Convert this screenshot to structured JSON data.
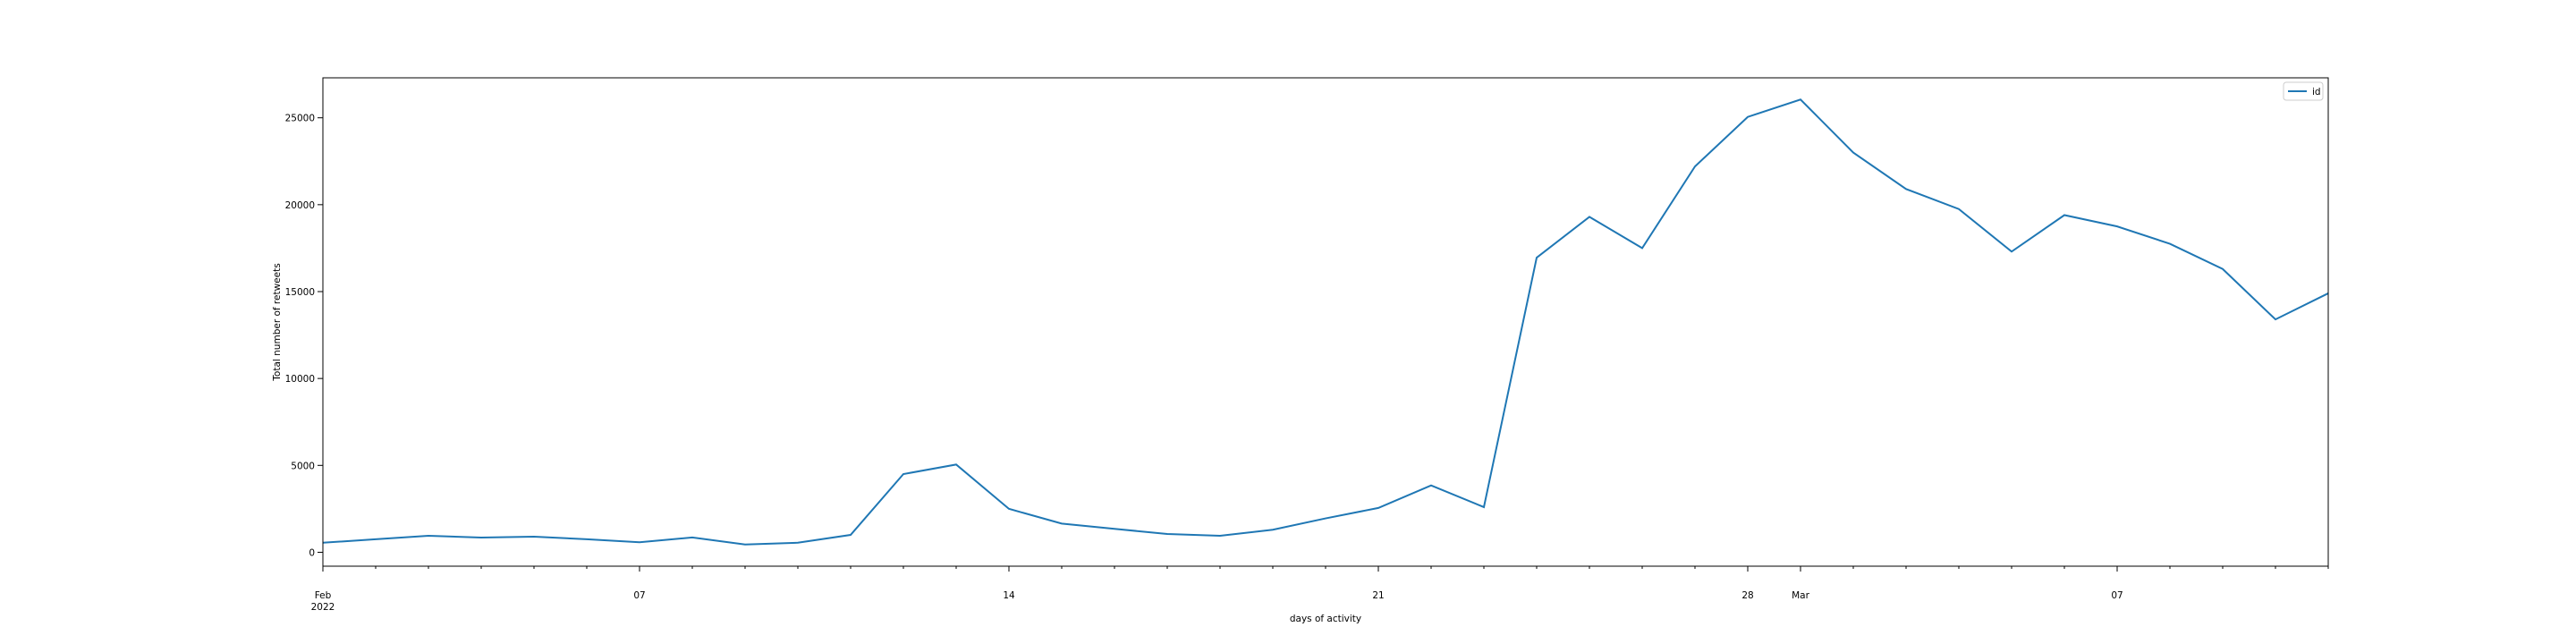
{
  "chart_data": {
    "type": "line",
    "title": "",
    "xlabel": "days of activity",
    "ylabel": "Total number of retweets",
    "x_start": "2022-02-01",
    "x": [
      "2022-02-01",
      "2022-02-02",
      "2022-02-03",
      "2022-02-04",
      "2022-02-05",
      "2022-02-06",
      "2022-02-07",
      "2022-02-08",
      "2022-02-09",
      "2022-02-10",
      "2022-02-11",
      "2022-02-12",
      "2022-02-13",
      "2022-02-14",
      "2022-02-15",
      "2022-02-16",
      "2022-02-17",
      "2022-02-18",
      "2022-02-19",
      "2022-02-20",
      "2022-02-21",
      "2022-02-22",
      "2022-02-23",
      "2022-02-24",
      "2022-02-25",
      "2022-02-26",
      "2022-02-27",
      "2022-02-28",
      "2022-03-01",
      "2022-03-02",
      "2022-03-03",
      "2022-03-04",
      "2022-03-05",
      "2022-03-06",
      "2022-03-07",
      "2022-03-08",
      "2022-03-09",
      "2022-03-10",
      "2022-03-11"
    ],
    "series": [
      {
        "name": "id",
        "color": "#1f77b4",
        "values": [
          550,
          750,
          950,
          850,
          900,
          750,
          580,
          850,
          450,
          550,
          1000,
          4500,
          5050,
          2500,
          1650,
          1350,
          1050,
          950,
          1300,
          1950,
          2550,
          3850,
          2600,
          16950,
          19300,
          17500,
          22200,
          25050,
          26050,
          23000,
          20900,
          19750,
          17300,
          19400,
          18750,
          17750,
          16300,
          13400,
          14900
        ]
      }
    ],
    "ylim": [
      -800,
      27300
    ],
    "y_ticks": [
      0,
      5000,
      10000,
      15000,
      20000,
      25000
    ],
    "y_tick_labels": [
      "0",
      "5000",
      "10000",
      "15000",
      "20000",
      "25000"
    ],
    "x_major_ticks": [
      {
        "x": "2022-02-01",
        "label": "Feb",
        "sublabel": "2022"
      },
      {
        "x": "2022-02-07",
        "label": "07",
        "sublabel": ""
      },
      {
        "x": "2022-02-14",
        "label": "14",
        "sublabel": ""
      },
      {
        "x": "2022-02-21",
        "label": "21",
        "sublabel": ""
      },
      {
        "x": "2022-02-28",
        "label": "28",
        "sublabel": ""
      },
      {
        "x": "2022-03-01",
        "label": "Mar",
        "sublabel": ""
      },
      {
        "x": "2022-03-07",
        "label": "07",
        "sublabel": ""
      }
    ],
    "grid": false,
    "legend_position": "top-right",
    "legend": [
      "id"
    ]
  }
}
